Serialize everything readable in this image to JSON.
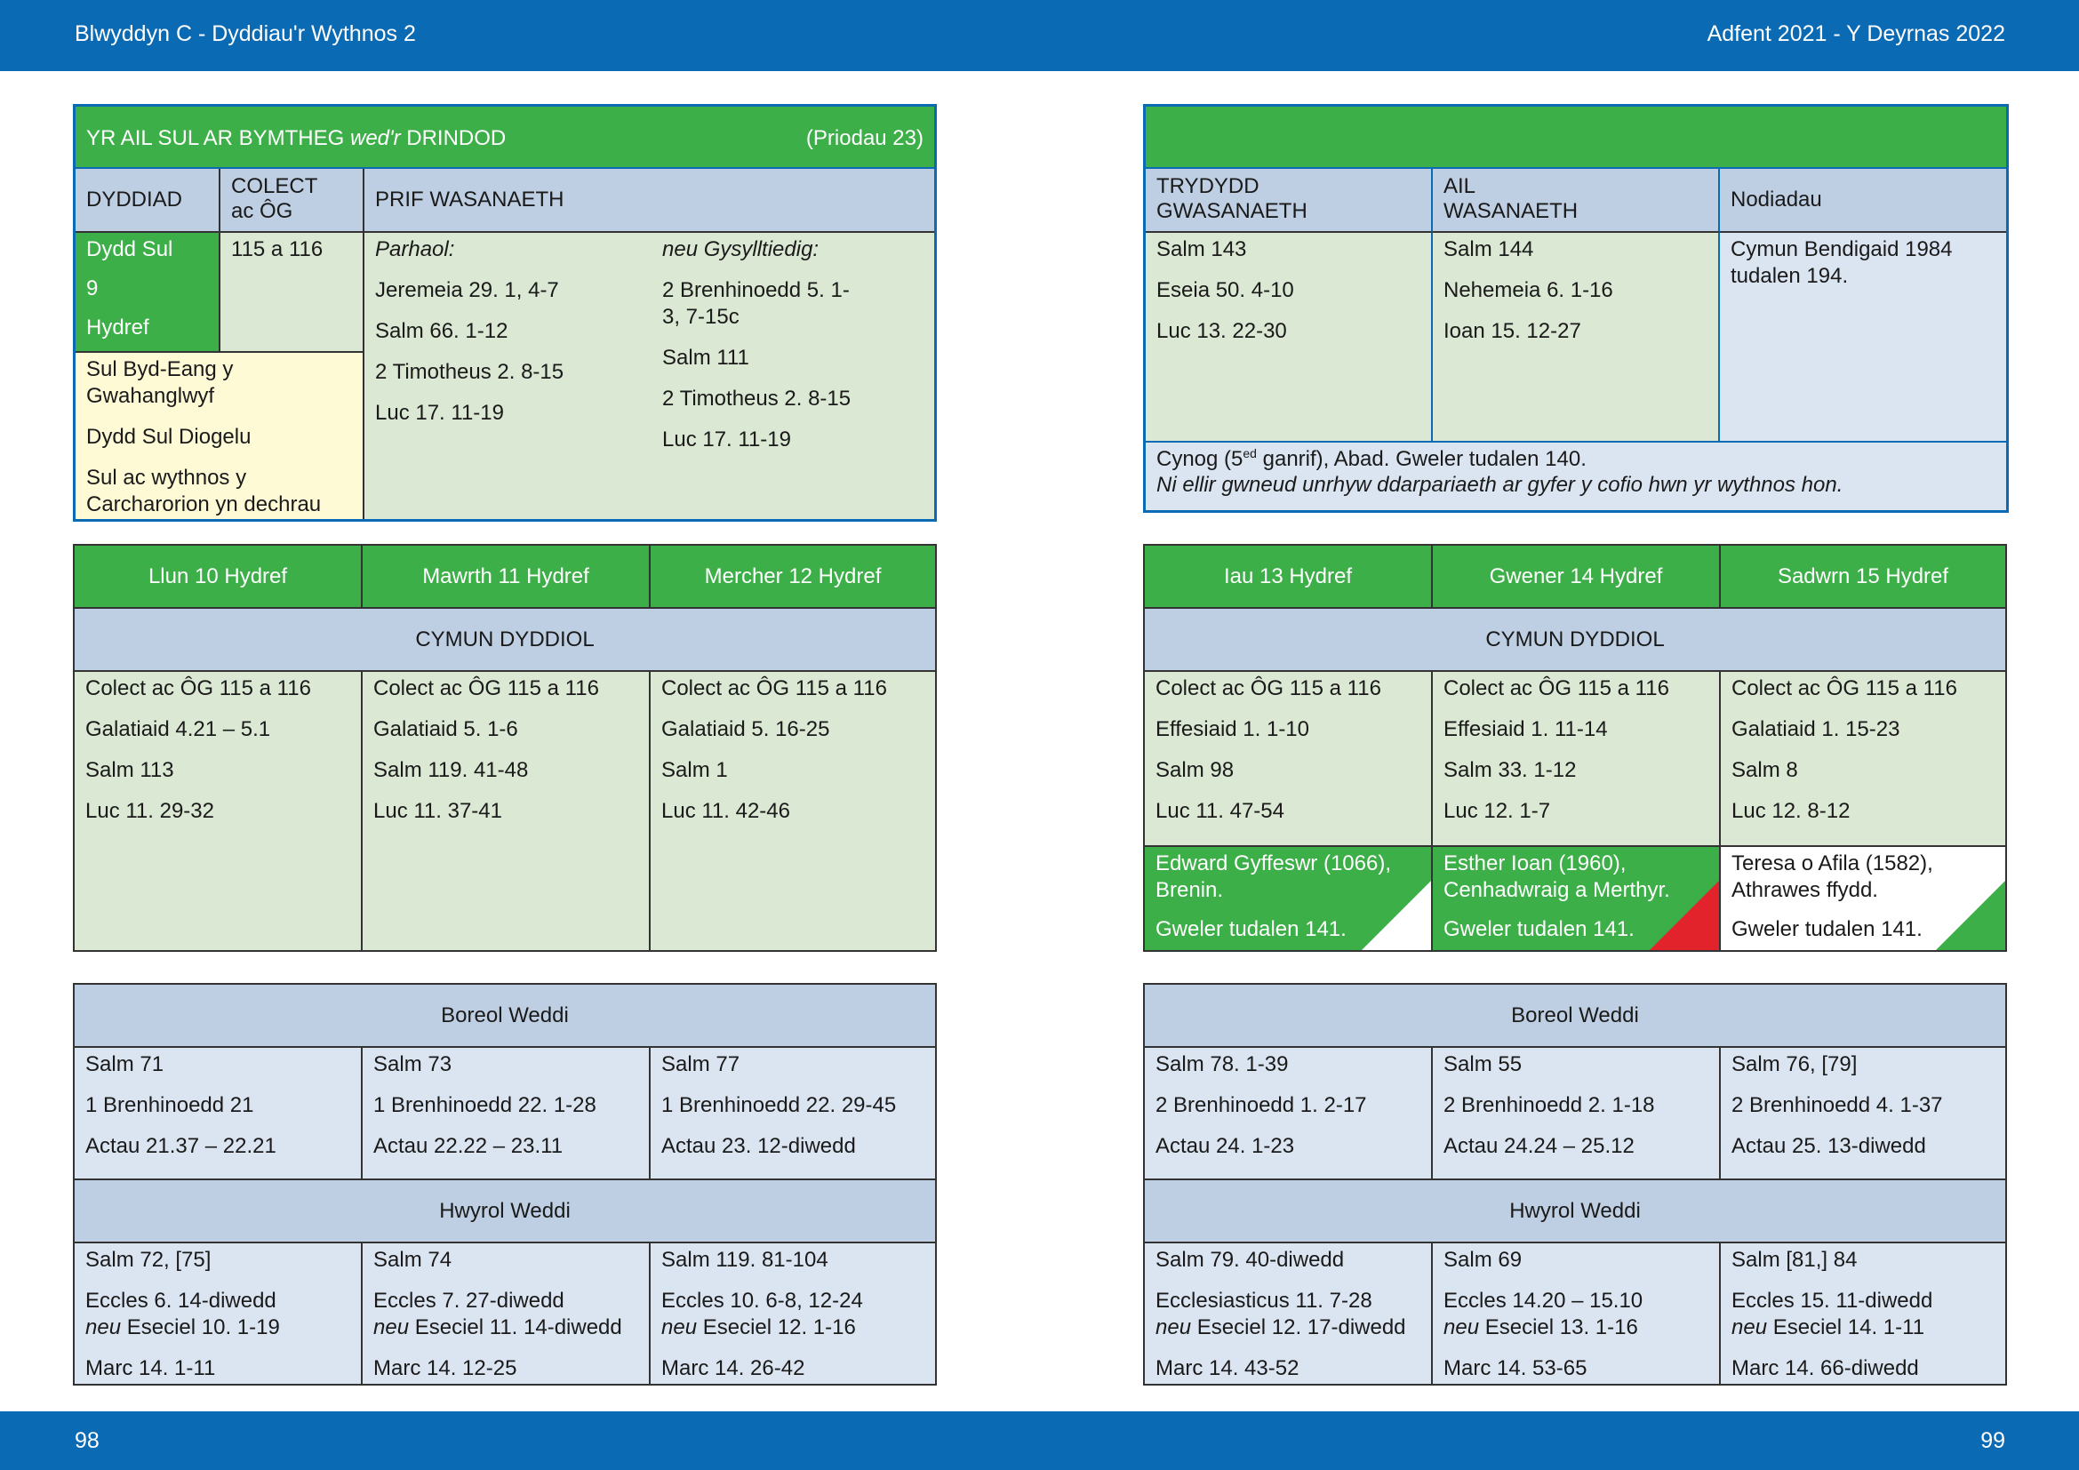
{
  "header": {
    "left": "Blwyddyn  C - Dyddiau'r Wythnos 2",
    "right": "Adfent 2021 - Y Deyrnas 2022"
  },
  "footer": {
    "left_page": "98",
    "right_page": "99"
  },
  "sunday": {
    "title_main": "YR AIL SUL AR BYMTHEG ",
    "title_italic": "wed'r",
    "title_end": " DRINDOD",
    "reference": "(Priodau 23)",
    "col_date": "DYDDIAD",
    "col_collect_1": "COLECT",
    "col_collect_2": "ac ÔG",
    "col_main": "PRIF WASANAETH",
    "date_lines": [
      "Dydd Sul",
      "9",
      "Hydref"
    ],
    "collect": "115 a 116",
    "observances": [
      "Sul Byd-Eang y Gwahanglwyf",
      "Dydd Sul Diogelu",
      "Sul ac wythnos y Carcharorion yn dechrau"
    ],
    "continuous_label": "Parhaol:",
    "continuous": [
      "Jeremeia 29. 1, 4-7",
      "Salm 66. 1-12",
      "2 Timotheus 2. 8-15",
      "Luc 17. 11-19"
    ],
    "related_label": "neu Gysylltiedig:",
    "related": [
      "2 Brenhinoedd 5. 1-3, 7-15c",
      "Salm 111",
      "2 Timotheus 2. 8-15",
      "Luc 17. 11-19"
    ],
    "col_third_1": "TRYDYDD",
    "col_third_2": "GWASANAETH",
    "col_second_1": "AIL",
    "col_second_2": "WASANAETH",
    "col_notes": "Nodiadau",
    "third": [
      "Salm 143",
      "Eseia 50. 4-10",
      "Luc 13. 22-30"
    ],
    "second": [
      "Salm 144",
      "Nehemeia 6. 1-16",
      "Ioan 15. 12-27"
    ],
    "notes": "Cymun Bendigaid 1984 tudalen 194.",
    "commem_pre": "Cynog (5",
    "commem_sup": "ed",
    "commem_post": " ganrif), Abad. Gweler tudalen 140.",
    "commem_note": "Ni ellir gwneud unrhyw ddarpariaeth ar gyfer y cofio hwn yr wythnos hon."
  },
  "weekdays_left": {
    "days": [
      "Llun 10 Hydref",
      "Mawrth 11 Hydref",
      "Mercher 12 Hydref"
    ],
    "eucharist_label": "CYMUN DYDDIOL",
    "readings": [
      [
        "Colect ac ÔG 115 a 116",
        "Galatiaid 4.21 – 5.1",
        "Salm 113",
        "Luc 11. 29-32"
      ],
      [
        "Colect ac ÔG 115 a 116",
        "Galatiaid 5. 1-6",
        "Salm 119. 41-48",
        "Luc 11. 37-41"
      ],
      [
        "Colect ac ÔG 115 a 116",
        "Galatiaid 5. 16-25",
        "Salm 1",
        "Luc 11. 42-46"
      ]
    ]
  },
  "weekdays_right": {
    "days": [
      "Iau 13 Hydref",
      "Gwener 14 Hydref",
      "Sadwrn 15 Hydref"
    ],
    "eucharist_label": "CYMUN DYDDIOL",
    "readings": [
      [
        "Colect ac ÔG 115 a 116",
        "Effesiaid 1. 1-10",
        "Salm 98",
        "Luc 11. 47-54"
      ],
      [
        "Colect ac ÔG 115 a 116",
        "Effesiaid 1. 11-14",
        "Salm 33. 1-12",
        "Luc 12. 1-7"
      ],
      [
        "Colect ac ÔG 115 a 116",
        "Galatiaid 1. 15-23",
        "Salm 8",
        "Luc 12. 8-12"
      ]
    ],
    "commemorations": [
      {
        "name": "Edward Gyffeswr (1066), Brenin.",
        "see": "Gweler tudalen 141.",
        "bg": "#3daf48",
        "corner": "#ffffff"
      },
      {
        "name": "Esther Ioan (1960), Cenhadwraig a Merthyr.",
        "see": "Gweler tudalen 141.",
        "bg": "#3daf48",
        "corner": "#e3232b"
      },
      {
        "name": "Teresa o Afila (1582), Athrawes ffydd.",
        "see": "Gweler tudalen 141.",
        "bg": "#ffffff",
        "corner": "#3daf48"
      }
    ]
  },
  "office_left": {
    "morning_label": "Boreol Weddi",
    "morning": [
      [
        "Salm 71",
        "1 Brenhinoedd 21",
        "Actau 21.37 – 22.21"
      ],
      [
        "Salm 73",
        "1 Brenhinoedd 22. 1-28",
        "Actau 22.22 – 23.11"
      ],
      [
        "Salm 77",
        "1 Brenhinoedd 22. 29-45",
        "Actau 23. 12-diwedd"
      ]
    ],
    "evening_label": "Hwyrol Weddi",
    "evening": [
      {
        "psalm": "Salm 72, [75]",
        "ot": "Eccles 6. 14-diwedd",
        "alt": "Eseciel 10. 1-19",
        "nt": "Marc 14. 1-11"
      },
      {
        "psalm": "Salm 74",
        "ot": "Eccles 7. 27-diwedd",
        "alt": "Eseciel 11. 14-diwedd",
        "nt": "Marc 14. 12-25"
      },
      {
        "psalm": "Salm 119. 81-104",
        "ot": "Eccles 10. 6-8, 12-24",
        "alt": "Eseciel 12. 1-16",
        "nt": "Marc 14. 26-42"
      }
    ],
    "or_word": "neu"
  },
  "office_right": {
    "morning_label": "Boreol Weddi",
    "morning": [
      [
        "Salm 78. 1-39",
        "2 Brenhinoedd 1. 2-17",
        "Actau 24. 1-23"
      ],
      [
        "Salm 55",
        "2 Brenhinoedd 2. 1-18",
        "Actau 24.24 – 25.12"
      ],
      [
        "Salm 76, [79]",
        "2 Brenhinoedd 4. 1-37",
        "Actau 25. 13-diwedd"
      ]
    ],
    "evening_label": "Hwyrol Weddi",
    "evening": [
      {
        "psalm": "Salm 79. 40-diwedd",
        "ot": "Ecclesiasticus 11. 7-28",
        "alt": "Eseciel 12. 17-diwedd",
        "nt": "Marc 14. 43-52"
      },
      {
        "psalm": "Salm 69",
        "ot": "Eccles 14.20 – 15.10",
        "alt": "Eseciel 13. 1-16",
        "nt": "Marc 14. 53-65"
      },
      {
        "psalm": "Salm [81,] 84",
        "ot": "Eccles 15. 11-diwedd",
        "alt": "Eseciel 14. 1-11",
        "nt": "Marc 14. 66-diwedd"
      }
    ],
    "or_word": "neu"
  },
  "colors": {
    "liturgical_green": "#3daf48",
    "header_blue": "#0a6ab4",
    "martyr_red": "#e3232b"
  }
}
